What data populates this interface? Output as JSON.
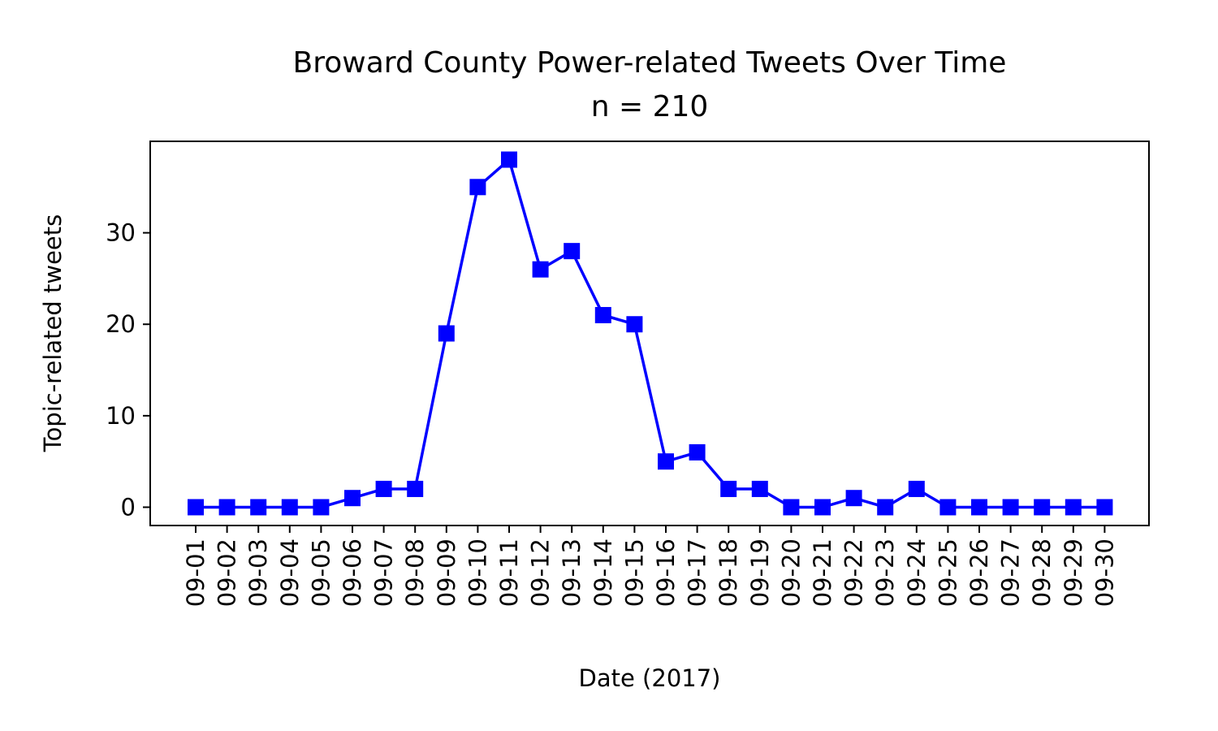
{
  "chart_data": {
    "type": "line",
    "title": "Broward County Power-related Tweets Over Time",
    "subtitle": "n = 210",
    "xlabel": "Date (2017)",
    "ylabel": "Topic-related tweets",
    "categories": [
      "09-01",
      "09-02",
      "09-03",
      "09-04",
      "09-05",
      "09-06",
      "09-07",
      "09-08",
      "09-09",
      "09-10",
      "09-11",
      "09-12",
      "09-13",
      "09-14",
      "09-15",
      "09-16",
      "09-17",
      "09-18",
      "09-19",
      "09-20",
      "09-21",
      "09-22",
      "09-23",
      "09-24",
      "09-25",
      "09-26",
      "09-27",
      "09-28",
      "09-29",
      "09-30"
    ],
    "series": [
      {
        "values": [
          0,
          0,
          0,
          0,
          0,
          1,
          2,
          2,
          19,
          35,
          38,
          26,
          28,
          21,
          20,
          5,
          6,
          2,
          2,
          0,
          0,
          1,
          0,
          2,
          0,
          0,
          0,
          0,
          0,
          0
        ],
        "color": "#0000ff",
        "marker": "square"
      }
    ],
    "ylim": [
      -2,
      40
    ],
    "yticks": [
      0,
      10,
      20,
      30
    ],
    "grid": false,
    "legend": "none"
  }
}
